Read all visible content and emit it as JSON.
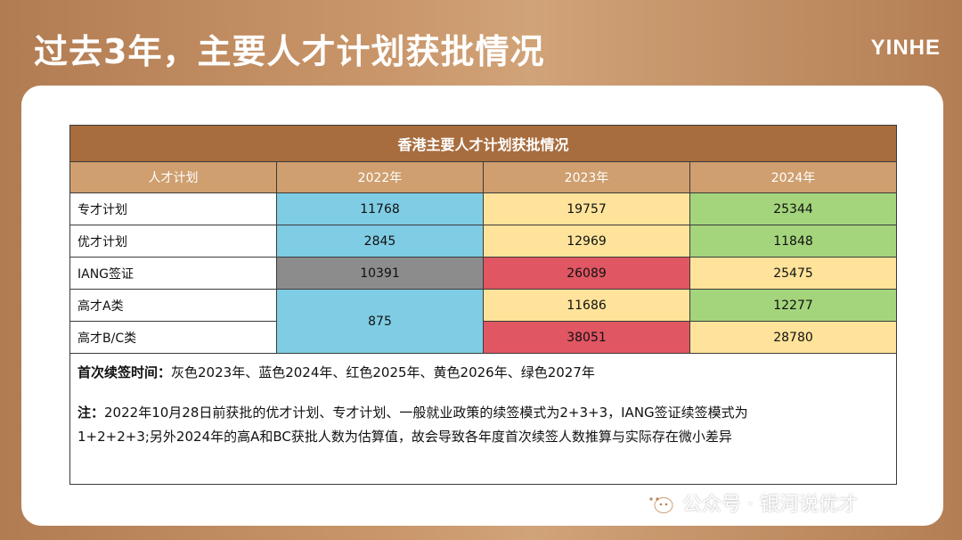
{
  "slide": {
    "title": "过去3年，主要人才计划获批情况",
    "logo": "YINHE"
  },
  "table": {
    "caption": "香港主要人才计划获批情况",
    "headers": [
      "人才计划",
      "2022年",
      "2023年",
      "2024年"
    ],
    "rows": [
      {
        "label": "专才计划",
        "v2022": "11768",
        "v2023": "19757",
        "v2024": "25344"
      },
      {
        "label": "优才计划",
        "v2022": "2845",
        "v2023": "12969",
        "v2024": "11848"
      },
      {
        "label": "IANG签证",
        "v2022": "10391",
        "v2023": "26089",
        "v2024": "25475"
      },
      {
        "label": "高才A类",
        "v2022": "875",
        "v2023": "11686",
        "v2024": "12277"
      },
      {
        "label": "高才B/C类",
        "v2023": "38051",
        "v2024": "28780"
      }
    ],
    "colors": {
      "blue": "#7fcde4",
      "yellow": "#ffe39a",
      "green": "#a4d57c",
      "gray": "#8c8c8c",
      "red": "#e05663"
    }
  },
  "notes": {
    "renewal_label": "首次续签时间：",
    "renewal_text": "灰色2023年、蓝色2024年、红色2025年、黄色2026年、绿色2027年",
    "note_label": "注：",
    "note_line1": "2022年10月28日前获批的优才计划、专才计划、一般就业政策的续签模式为2+3+3，IANG签证续签模式为",
    "note_line2": "1+2+2+3;另外2024年的高A和BC获批人数为估算值，故会导致各年度首次续签人数推算与实际存在微小差异"
  },
  "watermark": {
    "icon": "wechat-icon",
    "text": "公众号 · 银河说优才"
  }
}
